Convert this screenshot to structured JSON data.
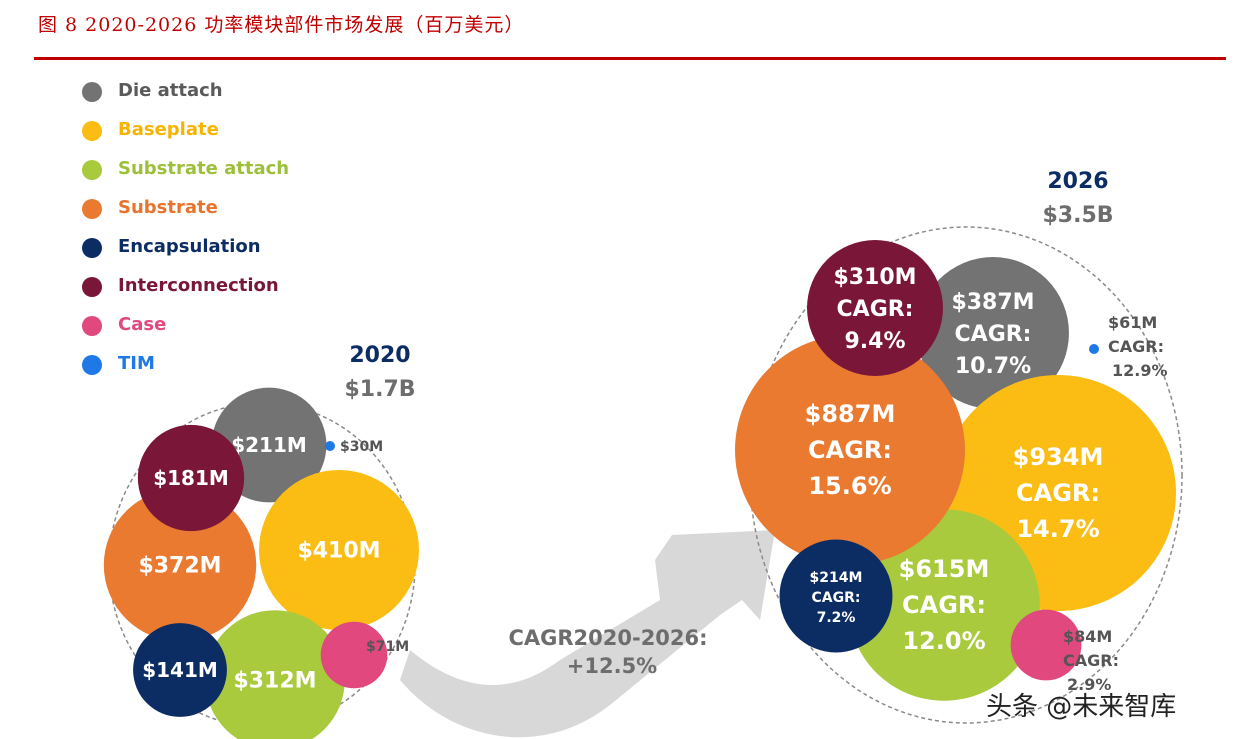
{
  "figure_title": "图 8 2020-2026 功率模块部件市场发展（百万美元）",
  "watermark": "头条 @未来智库",
  "colors": {
    "accent": "#c00000",
    "die_attach": "#737373",
    "baseplate": "#fbbd14",
    "substrate_attach": "#a8ca3c",
    "substrate": "#ea7a30",
    "encapsulation": "#0c2d64",
    "interconnection": "#7a1638",
    "case": "#e0487e",
    "tim": "#1e78e6",
    "arrow": "#d8d8d8"
  },
  "chart_data": {
    "type": "bubble",
    "legend_position": "top-left",
    "legend": [
      {
        "key": "die_attach",
        "label": "Die attach"
      },
      {
        "key": "baseplate",
        "label": "Baseplate"
      },
      {
        "key": "substrate_attach",
        "label": "Substrate attach"
      },
      {
        "key": "substrate",
        "label": "Substrate"
      },
      {
        "key": "encapsulation",
        "label": "Encapsulation"
      },
      {
        "key": "interconnection",
        "label": "Interconnection"
      },
      {
        "key": "case",
        "label": "Case"
      },
      {
        "key": "tim",
        "label": "TIM"
      }
    ],
    "groups": [
      {
        "year": "2020",
        "total": "$1.7B",
        "items": [
          {
            "key": "die_attach",
            "value": 211,
            "label": "$211M"
          },
          {
            "key": "baseplate",
            "value": 410,
            "label": "$410M"
          },
          {
            "key": "substrate_attach",
            "value": 312,
            "label": "$312M"
          },
          {
            "key": "substrate",
            "value": 372,
            "label": "$372M"
          },
          {
            "key": "encapsulation",
            "value": 141,
            "label": "$141M"
          },
          {
            "key": "interconnection",
            "value": 181,
            "label": "$181M"
          },
          {
            "key": "case",
            "value": 71,
            "label": "$71M"
          },
          {
            "key": "tim",
            "value": 30,
            "label": "$30M"
          }
        ]
      },
      {
        "year": "2026",
        "total": "$3.5B",
        "items": [
          {
            "key": "die_attach",
            "value": 387,
            "label": "$387M",
            "cagr": "CAGR:",
            "cagr_value": "10.7%"
          },
          {
            "key": "baseplate",
            "value": 934,
            "label": "$934M",
            "cagr": "CAGR:",
            "cagr_value": "14.7%"
          },
          {
            "key": "substrate_attach",
            "value": 615,
            "label": "$615M",
            "cagr": "CAGR:",
            "cagr_value": "12.0%"
          },
          {
            "key": "substrate",
            "value": 887,
            "label": "$887M",
            "cagr": "CAGR:",
            "cagr_value": "15.6%"
          },
          {
            "key": "encapsulation",
            "value": 214,
            "label": "$214M",
            "cagr": "CAGR:",
            "cagr_value": "7.2%"
          },
          {
            "key": "interconnection",
            "value": 310,
            "label": "$310M",
            "cagr": "CAGR:",
            "cagr_value": "9.4%"
          },
          {
            "key": "case",
            "value": 84,
            "label": "$84M",
            "cagr": "CAGR:",
            "cagr_value": "2.9%"
          },
          {
            "key": "tim",
            "value": 61,
            "label": "$61M",
            "cagr": "CAGR:",
            "cagr_value": "12.9%"
          }
        ]
      }
    ],
    "overall_cagr": {
      "label": "CAGR2020-2026:",
      "value": "+12.5%"
    }
  }
}
